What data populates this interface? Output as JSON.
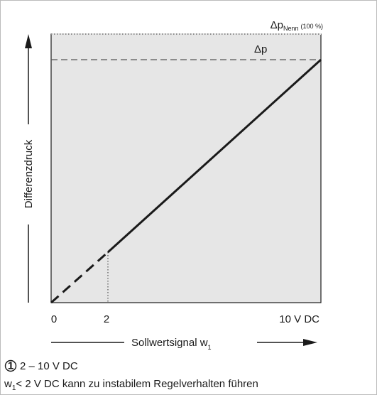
{
  "axis": {
    "y_label": "Differenzdruck",
    "x_label": "Sollwertsignal w",
    "x_label_sub": "1",
    "x_ticks": [
      "0",
      "2",
      "10 V DC"
    ]
  },
  "levels": {
    "nominal": "Δp",
    "nominal_sub": "Nenn",
    "nominal_note": "(100 %)",
    "setpoint": "Δp"
  },
  "notes": [
    {
      "marker": "1",
      "text": "2 – 10 V DC"
    },
    {
      "text": "w",
      "sub": "1",
      "rest": "< 2 V DC kann zu instabilem Regelverhalten führen"
    }
  ]
}
